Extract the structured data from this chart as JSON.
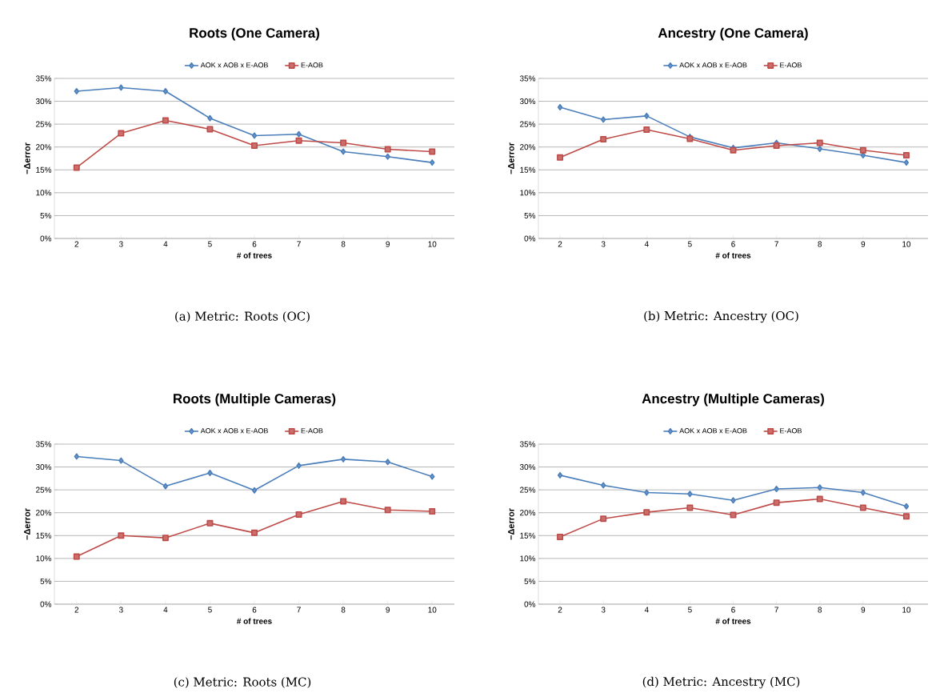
{
  "chart_data": [
    {
      "type": "line",
      "title": "Roots (One Camera)",
      "xlabel": "# of trees",
      "ylabel": "−Δerror",
      "categories": [
        "2",
        "3",
        "4",
        "5",
        "6",
        "7",
        "8",
        "9",
        "10"
      ],
      "series": [
        {
          "name": "AOK x AOB x E-AOB",
          "color": "#4a7ebb",
          "marker": "diamond",
          "values": [
            32.2,
            33.0,
            32.2,
            26.3,
            22.5,
            22.8,
            19.0,
            17.9,
            16.6
          ]
        },
        {
          "name": "E-AOB",
          "color": "#be4b48",
          "marker": "square",
          "values": [
            15.5,
            23.0,
            25.8,
            23.9,
            20.3,
            21.4,
            20.9,
            19.5,
            19.0
          ]
        }
      ],
      "ylim": [
        0,
        35
      ],
      "yticks": [
        {
          "value": 0,
          "label": "0%"
        },
        {
          "value": 5,
          "label": "5%"
        },
        {
          "value": 10,
          "label": "10%"
        },
        {
          "value": 15,
          "label": "15%"
        },
        {
          "value": 20,
          "label": "20%"
        },
        {
          "value": 25,
          "label": "25%"
        },
        {
          "value": 30,
          "label": "30%"
        },
        {
          "value": 35,
          "label": "35%"
        }
      ],
      "grid": "y",
      "legend": "top",
      "annotations": [
        "(a) Metric: Roots (OC)"
      ]
    },
    {
      "type": "line",
      "title": "Ancestry (One Camera)",
      "xlabel": "# of trees",
      "ylabel": "−Δerror",
      "categories": [
        "2",
        "3",
        "4",
        "5",
        "6",
        "7",
        "8",
        "9",
        "10"
      ],
      "series": [
        {
          "name": "AOK x AOB x E-AOB",
          "color": "#4a7ebb",
          "marker": "diamond",
          "values": [
            28.7,
            26.0,
            26.8,
            22.2,
            19.8,
            20.9,
            19.6,
            18.2,
            16.6
          ]
        },
        {
          "name": "E-AOB",
          "color": "#be4b48",
          "marker": "square",
          "values": [
            17.7,
            21.7,
            23.8,
            21.8,
            19.3,
            20.3,
            20.9,
            19.3,
            18.2
          ]
        }
      ],
      "ylim": [
        0,
        35
      ],
      "yticks": [
        {
          "value": 0,
          "label": "0%"
        },
        {
          "value": 5,
          "label": "5%"
        },
        {
          "value": 10,
          "label": "10%"
        },
        {
          "value": 15,
          "label": "15%"
        },
        {
          "value": 20,
          "label": "20%"
        },
        {
          "value": 25,
          "label": "25%"
        },
        {
          "value": 30,
          "label": "30%"
        },
        {
          "value": 35,
          "label": "35%"
        }
      ],
      "grid": "y",
      "legend": "top",
      "annotations": [
        "(b) Metric: Ancestry (OC)"
      ]
    },
    {
      "type": "line",
      "title": "Roots (Multiple Cameras)",
      "xlabel": "# of trees",
      "ylabel": "−Δerror",
      "categories": [
        "2",
        "3",
        "4",
        "5",
        "6",
        "7",
        "8",
        "9",
        "10"
      ],
      "series": [
        {
          "name": "AOK x AOB x E-AOB",
          "color": "#4a7ebb",
          "marker": "diamond",
          "values": [
            32.3,
            31.4,
            25.8,
            28.7,
            24.9,
            30.3,
            31.7,
            31.1,
            27.9
          ]
        },
        {
          "name": "E-AOB",
          "color": "#be4b48",
          "marker": "square",
          "values": [
            10.4,
            15.0,
            14.5,
            17.7,
            15.6,
            19.6,
            22.5,
            20.6,
            20.3
          ]
        }
      ],
      "ylim": [
        0,
        35
      ],
      "yticks": [
        {
          "value": 0,
          "label": "0%"
        },
        {
          "value": 5,
          "label": "5%"
        },
        {
          "value": 10,
          "label": "10%"
        },
        {
          "value": 15,
          "label": "15%"
        },
        {
          "value": 20,
          "label": "20%"
        },
        {
          "value": 25,
          "label": "25%"
        },
        {
          "value": 30,
          "label": "30%"
        },
        {
          "value": 35,
          "label": "35%"
        }
      ],
      "grid": "y",
      "legend": "top",
      "annotations": [
        "(c) Metric: Roots (MC)"
      ]
    },
    {
      "type": "line",
      "title": "Ancestry (Multiple Cameras)",
      "xlabel": "# of trees",
      "ylabel": "−Δerror",
      "categories": [
        "2",
        "3",
        "4",
        "5",
        "6",
        "7",
        "8",
        "9",
        "10"
      ],
      "series": [
        {
          "name": "AOK x AOB x E-AOB",
          "color": "#4a7ebb",
          "marker": "diamond",
          "values": [
            28.2,
            26.0,
            24.4,
            24.1,
            22.7,
            25.2,
            25.5,
            24.4,
            21.4
          ]
        },
        {
          "name": "E-AOB",
          "color": "#be4b48",
          "marker": "square",
          "values": [
            14.7,
            18.7,
            20.1,
            21.1,
            19.5,
            22.2,
            23.0,
            21.1,
            19.2
          ]
        }
      ],
      "ylim": [
        0,
        35
      ],
      "yticks": [
        {
          "value": 0,
          "label": "0%"
        },
        {
          "value": 5,
          "label": "5%"
        },
        {
          "value": 10,
          "label": "10%"
        },
        {
          "value": 15,
          "label": "15%"
        },
        {
          "value": 20,
          "label": "20%"
        },
        {
          "value": 25,
          "label": "25%"
        },
        {
          "value": 30,
          "label": "30%"
        },
        {
          "value": 35,
          "label": "35%"
        }
      ],
      "grid": "y",
      "legend": "top",
      "annotations": [
        "(d) Metric: Ancestry (MC)"
      ]
    }
  ]
}
